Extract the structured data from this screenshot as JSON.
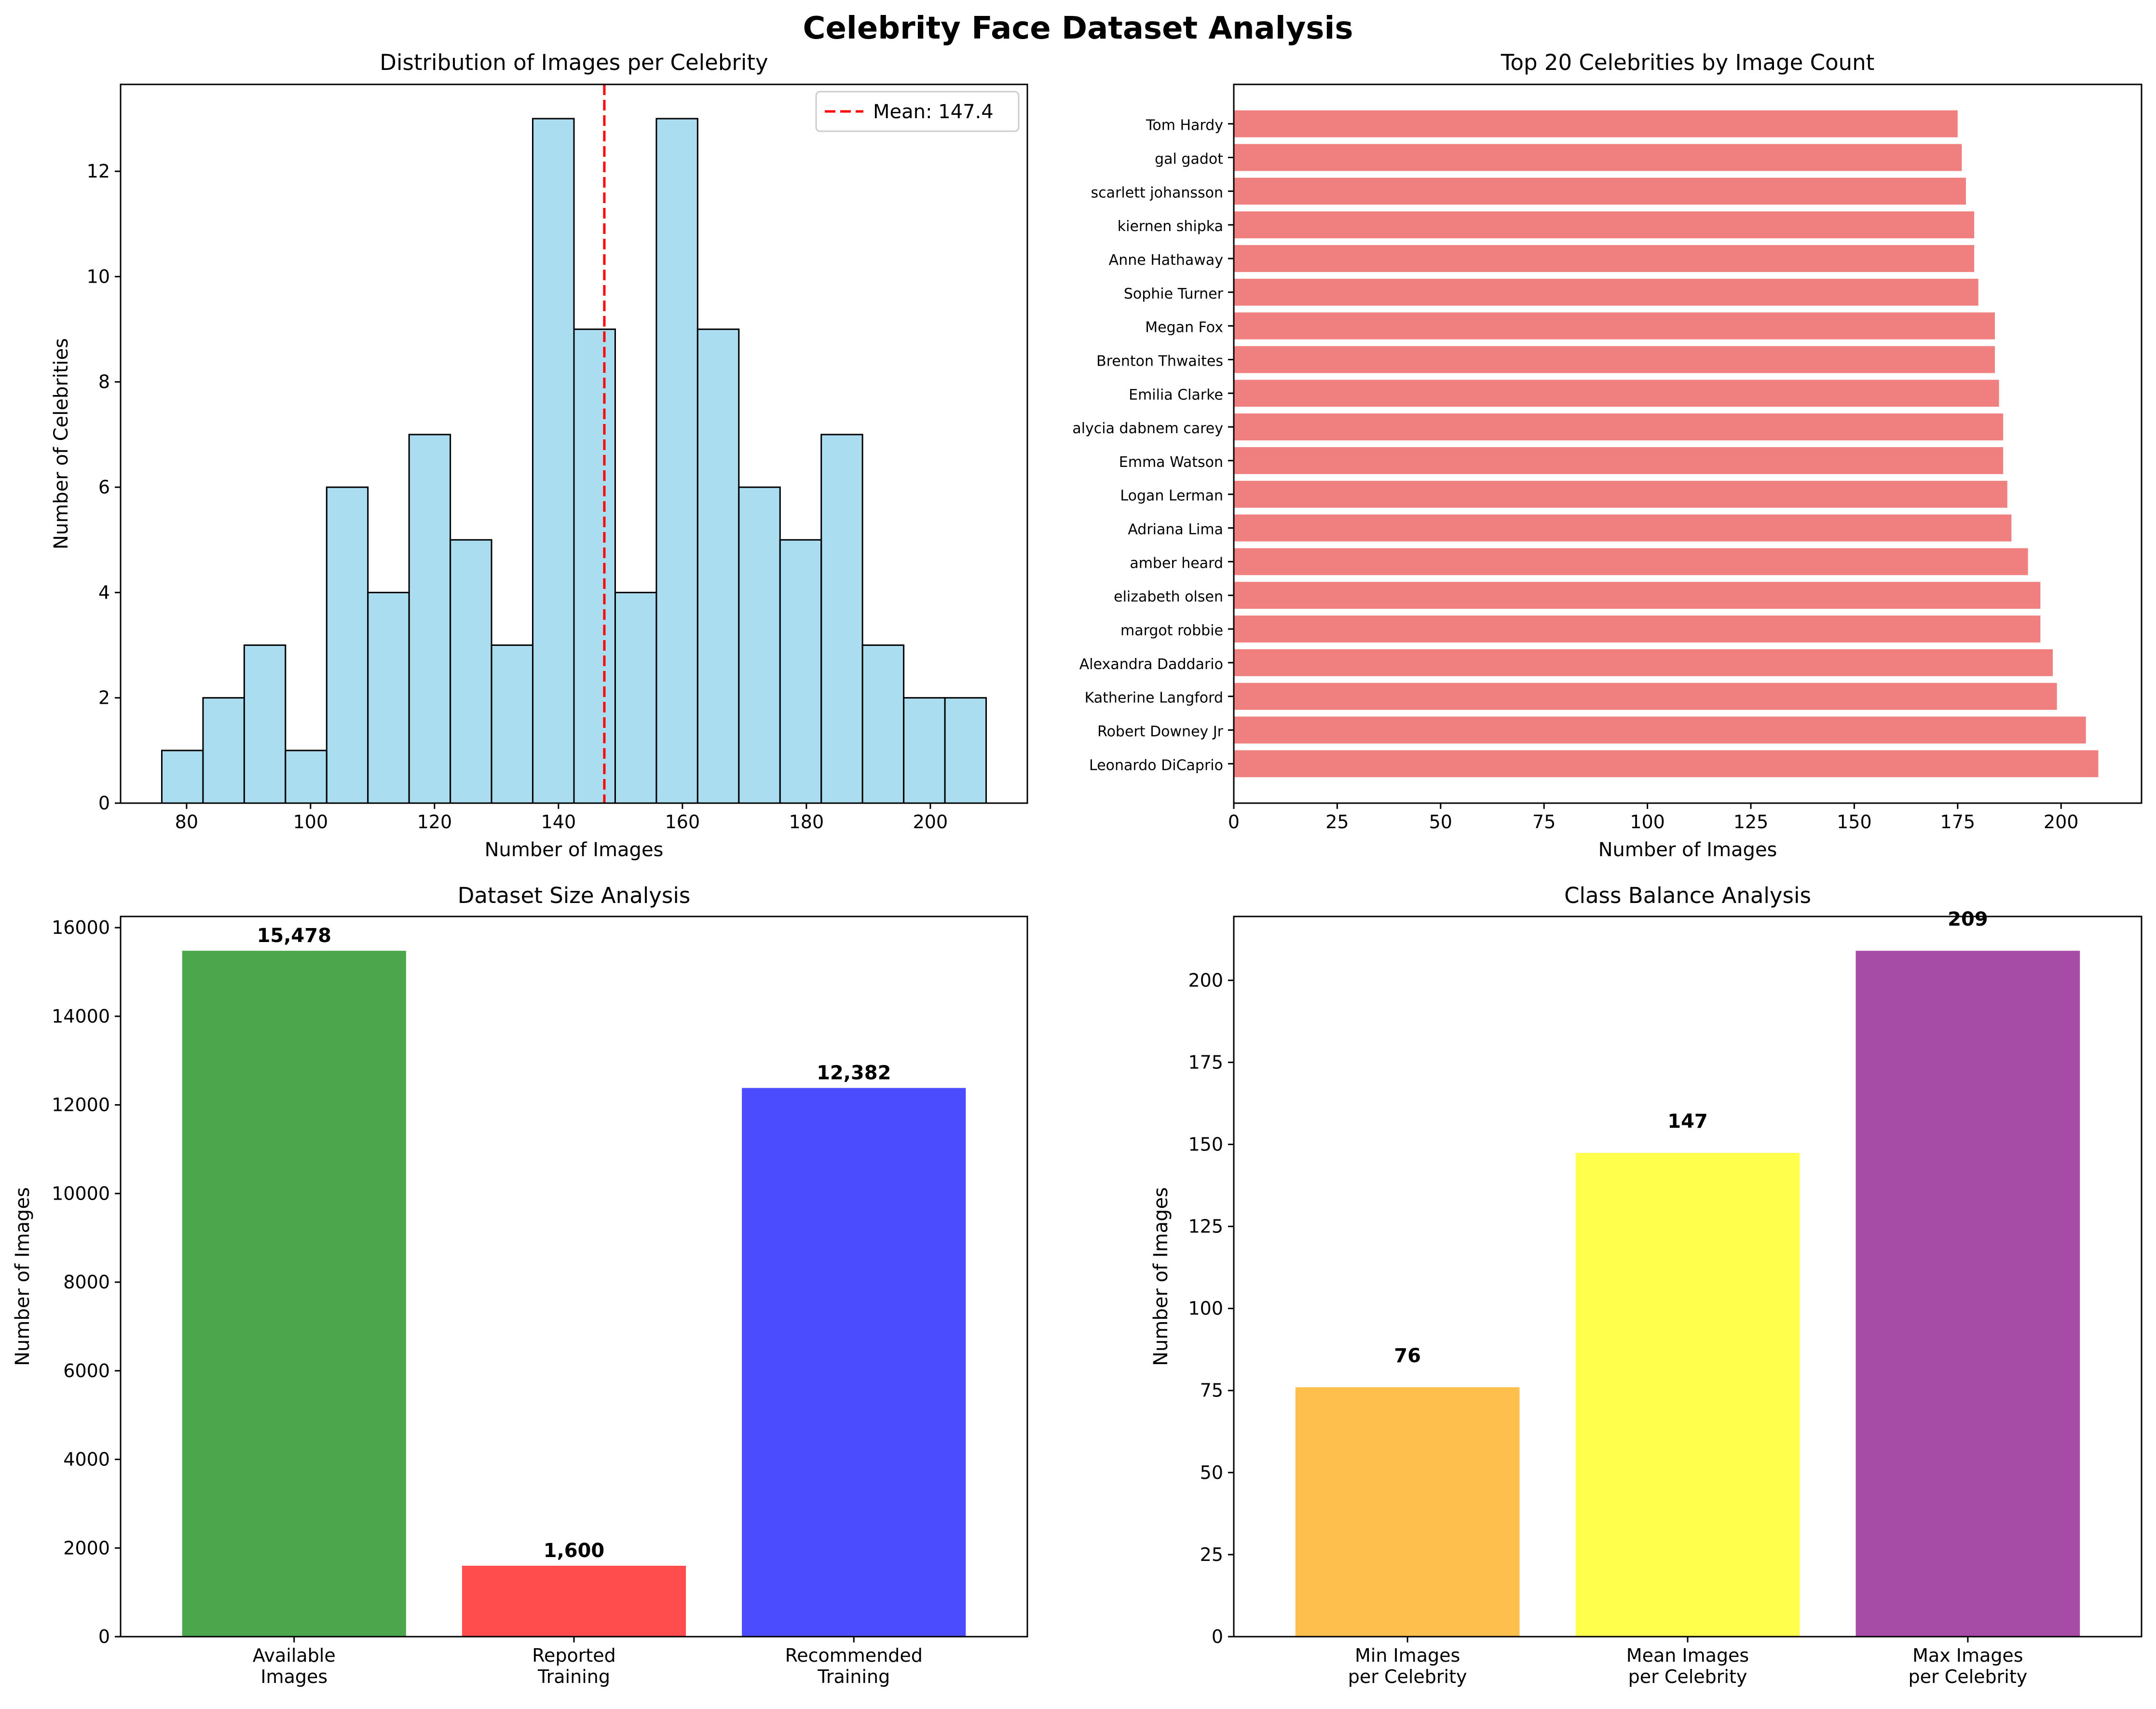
{
  "figure": {
    "title": "Celebrity Face Dataset Analysis"
  },
  "chart_data": [
    {
      "type": "bar",
      "subtype": "histogram",
      "title": "Distribution of Images per Celebrity",
      "xlabel": "Number of Images",
      "ylabel": "Number of Celebrities",
      "bins": {
        "edges": [
          76.0,
          82.65,
          89.3,
          95.95,
          102.6,
          109.25,
          115.9,
          122.55,
          129.2,
          135.85,
          142.5,
          149.15,
          155.8,
          162.45,
          169.1,
          175.75,
          182.4,
          189.05,
          195.7,
          202.35,
          209.0
        ],
        "counts": [
          1,
          2,
          3,
          1,
          6,
          4,
          7,
          5,
          3,
          13,
          9,
          4,
          13,
          9,
          6,
          5,
          7,
          3,
          2,
          2
        ]
      },
      "xlim": [
        69.35,
        215.65
      ],
      "ylim": [
        0,
        13.65
      ],
      "xticks": [
        "80",
        "100",
        "120",
        "140",
        "160",
        "180",
        "200"
      ],
      "yticks": [
        "0",
        "2",
        "4",
        "6",
        "8",
        "10",
        "12"
      ],
      "mean_line": {
        "value": 147.4,
        "label": "Mean: 147.4",
        "color": "#ff0000"
      },
      "legend": "top-right",
      "colors": {
        "bar": "#87ceeb",
        "edge": "#000000"
      }
    },
    {
      "type": "bar",
      "orientation": "horizontal",
      "title": "Top 20 Celebrities by Image Count",
      "xlabel": "Number of Images",
      "categories": [
        "Leonardo DiCaprio",
        "Robert Downey Jr",
        "Katherine Langford",
        "Alexandra Daddario",
        "margot robbie",
        "elizabeth olsen",
        "amber heard",
        "Adriana Lima",
        "Logan Lerman",
        "Emma Watson",
        "alycia dabnem carey",
        "Emilia Clarke",
        "Brenton Thwaites",
        "Megan Fox",
        "Sophie Turner",
        "Anne Hathaway",
        "kiernen shipka",
        "scarlett johansson",
        "gal gadot",
        "Tom Hardy"
      ],
      "values": [
        209,
        206,
        199,
        198,
        195,
        195,
        192,
        188,
        187,
        186,
        186,
        185,
        184,
        184,
        180,
        179,
        179,
        177,
        176,
        175
      ],
      "xlim": [
        0,
        219.45
      ],
      "xticks": [
        "0",
        "25",
        "50",
        "75",
        "100",
        "125",
        "150",
        "175",
        "200"
      ],
      "colors": {
        "bar": "#f08080"
      }
    },
    {
      "type": "bar",
      "title": "Dataset Size Analysis",
      "ylabel": "Number of Images",
      "categories": [
        "Available\nImages",
        "Reported\nTraining",
        "Recommended\nTraining"
      ],
      "values": [
        15478,
        1600,
        12382
      ],
      "value_labels": [
        "15,478",
        "1,600",
        "12,382"
      ],
      "ylim": [
        0,
        16251.9
      ],
      "yticks": [
        "0",
        "2000",
        "4000",
        "6000",
        "8000",
        "10000",
        "12000",
        "14000",
        "16000"
      ],
      "colors": [
        "#4ca64c",
        "#ff4c4c",
        "#4c4cff"
      ]
    },
    {
      "type": "bar",
      "title": "Class Balance Analysis",
      "ylabel": "Number of Images",
      "categories": [
        "Min Images\nper Celebrity",
        "Mean Images\nper Celebrity",
        "Max Images\nper Celebrity"
      ],
      "values": [
        76,
        147.4,
        209
      ],
      "value_labels": [
        "76",
        "147",
        "209"
      ],
      "ylim": [
        0,
        219.45
      ],
      "yticks": [
        "0",
        "25",
        "50",
        "75",
        "100",
        "125",
        "150",
        "175",
        "200"
      ],
      "colors": [
        "#ffbf4c",
        "#ffff4c",
        "#a64ca6"
      ]
    }
  ]
}
